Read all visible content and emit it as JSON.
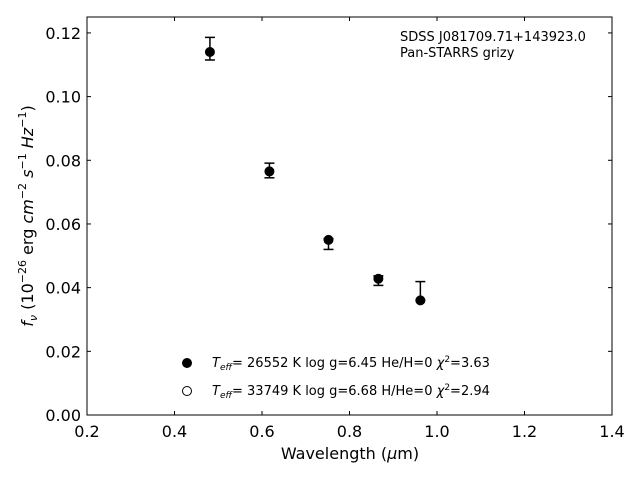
{
  "chart_data": {
    "type": "scatter",
    "annotation": [
      "SDSS J081709.71+143923.0",
      "Pan-STARRS grizy"
    ],
    "xlabel": "Wavelength (μm)",
    "ylabel": "f_ν (10^-26 erg cm^-2 s^-1 Hz^-1)",
    "xlim": [
      0.2,
      1.4
    ],
    "ylim": [
      0.0,
      0.125
    ],
    "xticks": [
      0.2,
      0.4,
      0.6,
      0.8,
      1.0,
      1.2,
      1.4
    ],
    "xtick_labels": [
      "0.2",
      "0.4",
      "0.6",
      "0.8",
      "1.0",
      "1.2",
      "1.4"
    ],
    "yticks": [
      0.0,
      0.02,
      0.04,
      0.06,
      0.08,
      0.1,
      0.12
    ],
    "ytick_labels": [
      "0.00",
      "0.02",
      "0.04",
      "0.06",
      "0.08",
      "0.10",
      "0.12"
    ],
    "grid": false,
    "legend_position": "lower-center",
    "observed": {
      "x": [
        0.481,
        0.617,
        0.752,
        0.866,
        0.962
      ],
      "y": [
        0.1148,
        0.0768,
        0.0545,
        0.0424,
        0.0383
      ],
      "err_low": [
        0.0033,
        0.0023,
        0.0025,
        0.0017,
        0.0023
      ],
      "err_high": [
        0.0038,
        0.0023,
        0.0009,
        0.0013,
        0.0036
      ]
    },
    "series": [
      {
        "marker": "filled",
        "color": "#000000",
        "x": [
          0.481,
          0.617,
          0.752,
          0.866,
          0.962
        ],
        "y": [
          0.114,
          0.0765,
          0.055,
          0.0428,
          0.036
        ]
      },
      {
        "marker": "open",
        "color": "#000000",
        "x": [],
        "y": []
      }
    ],
    "legend": [
      {
        "marker": "filled",
        "teff_value": "= 26552 K",
        "logg": "log g=6.45",
        "comp": "He/H=0",
        "chi2": "=3.63"
      },
      {
        "marker": "open",
        "teff_value": "= 33749 K",
        "logg": "log g=6.68",
        "comp": "H/He=0",
        "chi2": "=2.94"
      }
    ]
  }
}
